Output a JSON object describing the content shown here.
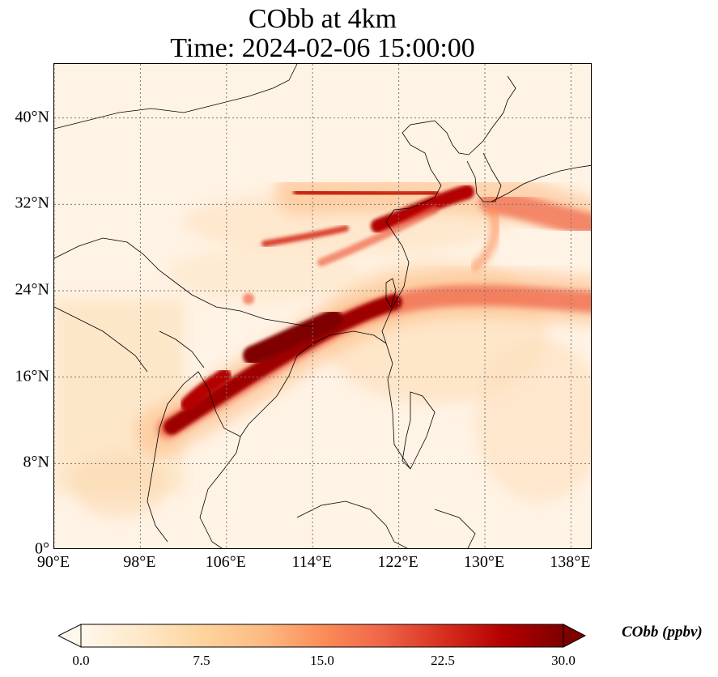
{
  "title": {
    "line1": "CObb at 4km",
    "line2": "Time: 2024-02-06 15:00:00"
  },
  "map": {
    "extent": {
      "lon": [
        90,
        140
      ],
      "lat": [
        0,
        45
      ]
    },
    "lat_ticks": [
      0,
      8,
      16,
      24,
      32,
      40
    ],
    "lat_tick_labels": [
      "0°",
      "8°N",
      "16°N",
      "24°N",
      "32°N",
      "40°N"
    ],
    "lon_ticks": [
      90,
      98,
      106,
      114,
      122,
      130,
      138
    ],
    "lon_tick_labels": [
      "90°E",
      "98°E",
      "106°E",
      "114°E",
      "122°E",
      "130°E",
      "138°E"
    ],
    "gridlines": true,
    "variable": "CObb",
    "colormap": "OrRd",
    "colors": {
      "background": "#fff3e5",
      "gridline": "#777777",
      "coastline": "#000000"
    }
  },
  "colorbar": {
    "label": "CObb (ppbv)",
    "min": 0.0,
    "max": 30.0,
    "ticks": [
      0.0,
      7.5,
      15.0,
      22.5,
      30.0
    ],
    "tick_labels": [
      "0.0",
      "7.5",
      "15.0",
      "22.5",
      "30.0"
    ],
    "extend": "both",
    "stops": [
      "#fff7ec",
      "#fee8c8",
      "#fdd49e",
      "#fdbb84",
      "#fc8d59",
      "#ef6548",
      "#d7301f",
      "#b30000",
      "#7f0000"
    ]
  }
}
